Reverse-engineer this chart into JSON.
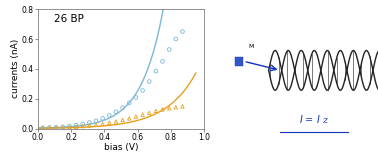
{
  "title": "26 BP",
  "xlabel": "bias (V)",
  "ylabel": "currents (nA)",
  "xlim": [
    0.0,
    1.0
  ],
  "ylim": [
    0.0,
    0.8
  ],
  "yticks": [
    0.0,
    0.2,
    0.4,
    0.6,
    0.8
  ],
  "xticks": [
    0.0,
    0.2,
    0.4,
    0.6,
    0.8,
    1.0
  ],
  "blue_color": "#7ab8d9",
  "orange_color": "#e8a020",
  "plot_bg_color": "#ffffff",
  "fig_bg_color": "#ffffff",
  "gold_color": "#f5a800",
  "dna_color": "#333333",
  "arrow_color": "#1133bb",
  "text_color": "#1133bb",
  "blue_scatter_x": [
    0.03,
    0.07,
    0.11,
    0.15,
    0.19,
    0.23,
    0.27,
    0.31,
    0.35,
    0.39,
    0.43,
    0.47,
    0.51,
    0.55,
    0.59,
    0.63,
    0.67,
    0.71,
    0.75,
    0.79,
    0.83,
    0.87
  ],
  "blue_scatter_y": [
    0.005,
    0.007,
    0.009,
    0.012,
    0.016,
    0.022,
    0.03,
    0.04,
    0.052,
    0.068,
    0.088,
    0.112,
    0.14,
    0.172,
    0.208,
    0.255,
    0.315,
    0.385,
    0.45,
    0.53,
    0.6,
    0.65
  ],
  "orange_scatter_x": [
    0.03,
    0.07,
    0.11,
    0.15,
    0.19,
    0.23,
    0.27,
    0.31,
    0.35,
    0.39,
    0.43,
    0.47,
    0.51,
    0.55,
    0.59,
    0.63,
    0.67,
    0.71,
    0.75,
    0.79,
    0.83,
    0.87
  ],
  "orange_scatter_y": [
    0.003,
    0.004,
    0.005,
    0.007,
    0.009,
    0.012,
    0.016,
    0.02,
    0.025,
    0.031,
    0.038,
    0.047,
    0.057,
    0.068,
    0.08,
    0.093,
    0.105,
    0.118,
    0.128,
    0.136,
    0.143,
    0.148
  ],
  "label_fontsize": 6.5,
  "tick_fontsize": 5.5,
  "title_fontsize": 7.5
}
